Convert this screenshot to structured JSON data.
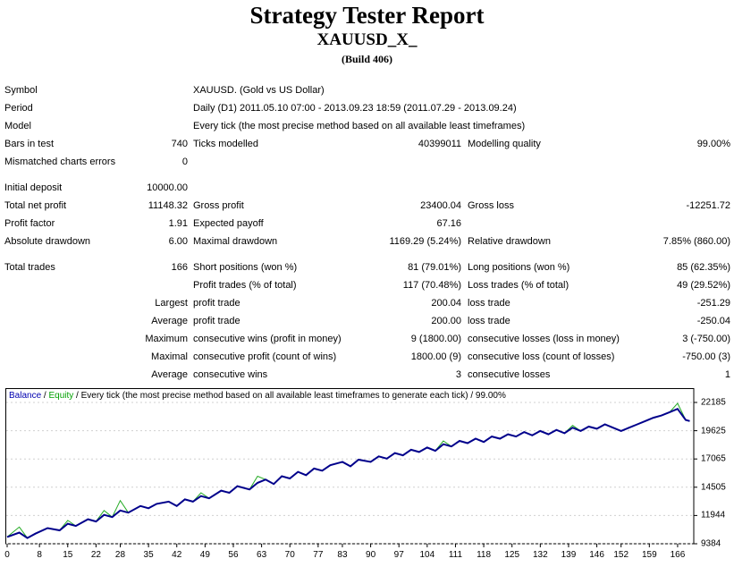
{
  "header": {
    "title": "Strategy Tester Report",
    "subtitle": "XAUUSD_X_",
    "build": "(Build 406)"
  },
  "info": {
    "symbol_label": "Symbol",
    "symbol_value": "XAUUSD. (Gold vs US Dollar)",
    "period_label": "Period",
    "period_value": "Daily (D1) 2011.05.10 07:00 - 2013.09.23 18:59 (2011.07.29 - 2013.09.24)",
    "model_label": "Model",
    "model_value": "Every tick (the most precise method based on all available least timeframes)",
    "bars_label": "Bars in test",
    "bars_value": "740",
    "ticks_label": "Ticks modelled",
    "ticks_value": "40399011",
    "quality_label": "Modelling quality",
    "quality_value": "99.00%",
    "mismatch_label": "Mismatched charts errors",
    "mismatch_value": "0"
  },
  "results": {
    "initial_deposit_label": "Initial deposit",
    "initial_deposit_value": "10000.00",
    "net_profit_label": "Total net profit",
    "net_profit_value": "11148.32",
    "gross_profit_label": "Gross profit",
    "gross_profit_value": "23400.04",
    "gross_loss_label": "Gross loss",
    "gross_loss_value": "-12251.72",
    "profit_factor_label": "Profit factor",
    "profit_factor_value": "1.91",
    "expected_payoff_label": "Expected payoff",
    "expected_payoff_value": "67.16",
    "abs_dd_label": "Absolute drawdown",
    "abs_dd_value": "6.00",
    "max_dd_label": "Maximal drawdown",
    "max_dd_value": "1169.29 (5.24%)",
    "rel_dd_label": "Relative drawdown",
    "rel_dd_value": "7.85% (860.00)"
  },
  "trades": {
    "total_label": "Total trades",
    "total_value": "166",
    "short_label": "Short positions (won %)",
    "short_value": "81 (79.01%)",
    "long_label": "Long positions (won %)",
    "long_value": "85 (62.35%)",
    "profit_trades_label": "Profit trades (% of total)",
    "profit_trades_value": "117 (70.48%)",
    "loss_trades_label": "Loss trades (% of total)",
    "loss_trades_value": "49 (29.52%)",
    "largest_label": "Largest",
    "largest_profit_label": "profit trade",
    "largest_profit_value": "200.04",
    "largest_loss_label": "loss trade",
    "largest_loss_value": "-251.29",
    "average_label": "Average",
    "average_profit_label": "profit trade",
    "average_profit_value": "200.00",
    "average_loss_label": "loss trade",
    "average_loss_value": "-250.04",
    "maximum_label": "Maximum",
    "max_wins_label": "consecutive wins (profit in money)",
    "max_wins_value": "9 (1800.00)",
    "max_losses_label": "consecutive losses (loss in money)",
    "max_losses_value": "3 (-750.00)",
    "maximal_label": "Maximal",
    "maximal_profit_label": "consecutive profit (count of wins)",
    "maximal_profit_value": "1800.00 (9)",
    "maximal_loss_label": "consecutive loss (count of losses)",
    "maximal_loss_value": "-750.00 (3)",
    "avg_consec_label": "Average",
    "avg_wins_label": "consecutive wins",
    "avg_wins_value": "3",
    "avg_losses_label": "consecutive losses",
    "avg_losses_value": "1"
  },
  "chart_data": {
    "type": "line",
    "legend": {
      "balance": "Balance",
      "sep": " / ",
      "equity": "Equity",
      "rest": " / Every tick (the most precise method based on all available least timeframes to generate each tick) / 99.00%"
    },
    "x_ticks": [
      "0",
      "8",
      "15",
      "22",
      "28",
      "35",
      "42",
      "49",
      "56",
      "63",
      "70",
      "77",
      "83",
      "90",
      "97",
      "104",
      "111",
      "118",
      "125",
      "132",
      "139",
      "146",
      "152",
      "159",
      "166"
    ],
    "y_ticks": [
      "22185",
      "19625",
      "17065",
      "14505",
      "11944",
      "9384"
    ],
    "ylim": [
      9384,
      22185
    ],
    "xlim": [
      0,
      170
    ],
    "colors": {
      "balance": "#00008b",
      "equity": "#22aa22",
      "grid": "#d0d0d0",
      "frame": "#000000"
    },
    "series": [
      {
        "name": "Balance",
        "x": [
          0,
          3,
          5,
          7,
          10,
          13,
          15,
          17,
          20,
          22,
          24,
          26,
          28,
          30,
          33,
          35,
          37,
          40,
          42,
          44,
          46,
          48,
          50,
          53,
          55,
          57,
          60,
          62,
          64,
          66,
          68,
          70,
          72,
          74,
          76,
          78,
          80,
          83,
          85,
          87,
          90,
          92,
          94,
          96,
          98,
          100,
          102,
          104,
          106,
          108,
          110,
          112,
          114,
          116,
          118,
          120,
          122,
          124,
          126,
          128,
          130,
          132,
          134,
          136,
          138,
          140,
          142,
          144,
          146,
          148,
          150,
          152,
          154,
          156,
          158,
          160,
          162,
          164,
          166,
          168,
          169
        ],
        "y": [
          10000,
          10400,
          9900,
          10300,
          10800,
          10600,
          11200,
          11000,
          11600,
          11400,
          12000,
          11800,
          12400,
          12200,
          12800,
          12600,
          13000,
          13200,
          12800,
          13400,
          13200,
          13700,
          13500,
          14200,
          14000,
          14600,
          14300,
          14900,
          15200,
          14800,
          15500,
          15300,
          15900,
          15600,
          16200,
          16000,
          16500,
          16800,
          16400,
          17000,
          16800,
          17300,
          17100,
          17600,
          17400,
          17900,
          17700,
          18100,
          17800,
          18400,
          18200,
          18700,
          18500,
          18900,
          18600,
          19100,
          18900,
          19300,
          19100,
          19500,
          19200,
          19600,
          19300,
          19700,
          19400,
          19900,
          19600,
          20000,
          19800,
          20200,
          19900,
          19600,
          19900,
          20200,
          20500,
          20800,
          21000,
          21300,
          21600,
          20600,
          20500
        ]
      },
      {
        "name": "Equity",
        "x": [
          0,
          3,
          5,
          7,
          10,
          13,
          15,
          17,
          20,
          22,
          24,
          26,
          28,
          30,
          33,
          35,
          37,
          40,
          42,
          44,
          46,
          48,
          50,
          53,
          55,
          57,
          60,
          62,
          64,
          66,
          68,
          70,
          72,
          74,
          76,
          78,
          80,
          83,
          85,
          87,
          90,
          92,
          94,
          96,
          98,
          100,
          102,
          104,
          106,
          108,
          110,
          112,
          114,
          116,
          118,
          120,
          122,
          124,
          126,
          128,
          130,
          132,
          134,
          136,
          138,
          140,
          142,
          144,
          146,
          148,
          150,
          152,
          154,
          156,
          158,
          160,
          162,
          164,
          166,
          168,
          169
        ],
        "y": [
          10000,
          10900,
          9900,
          10300,
          10800,
          10600,
          11500,
          11000,
          11600,
          11400,
          12400,
          11800,
          13300,
          12200,
          12800,
          12600,
          13000,
          13200,
          12800,
          13400,
          13200,
          14000,
          13500,
          14200,
          14000,
          14600,
          14300,
          15500,
          15200,
          14800,
          15500,
          15300,
          15900,
          15600,
          16200,
          16000,
          16500,
          16800,
          16400,
          17000,
          16800,
          17300,
          17100,
          17600,
          17400,
          17900,
          17700,
          18100,
          17800,
          18700,
          18200,
          18700,
          18500,
          18900,
          18600,
          19100,
          18900,
          19300,
          19100,
          19500,
          19200,
          19600,
          19300,
          19700,
          19400,
          20100,
          19600,
          20000,
          19800,
          20200,
          19900,
          19600,
          19900,
          20200,
          20500,
          20800,
          21000,
          21300,
          22100,
          20600,
          20500
        ]
      }
    ]
  }
}
